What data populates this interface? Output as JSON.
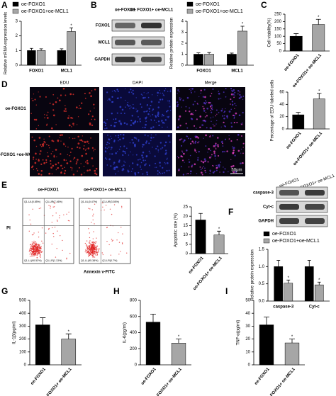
{
  "chart_data": [
    {
      "type": "bar",
      "panel": "A",
      "ylabel": "Relative mRNA expression levels",
      "categories": [
        "FOXO1",
        "MCL1"
      ],
      "series": [
        {
          "name": "oe-FOXO1",
          "color": "#000000",
          "values": [
            1.0,
            1.0
          ],
          "errors": [
            0.15,
            0.12
          ],
          "significance": [
            null,
            null
          ]
        },
        {
          "name": "oe-FOXO1+oe-MCL1",
          "color": "#a6a6a6",
          "values": [
            1.0,
            2.3
          ],
          "errors": [
            0.12,
            0.25
          ],
          "significance": [
            null,
            "*"
          ]
        }
      ],
      "ylim": [
        0,
        3
      ],
      "yticks": [
        0,
        1,
        2,
        3
      ]
    },
    {
      "type": "bar",
      "panel": "B",
      "ylabel": "Relative protein expression",
      "categories": [
        "FOXO1",
        "MCL1"
      ],
      "series": [
        {
          "name": "oe-FOXO1",
          "color": "#000000",
          "values": [
            1.0,
            1.0
          ],
          "errors": [
            0.12,
            0.1
          ],
          "significance": [
            null,
            null
          ]
        },
        {
          "name": "oe-FOXO1+oe-MCL1",
          "color": "#a6a6a6",
          "values": [
            1.0,
            3.1
          ],
          "errors": [
            0.15,
            0.45
          ],
          "significance": [
            null,
            "*"
          ]
        }
      ],
      "ylim": [
        0,
        4
      ],
      "yticks": [
        0,
        1,
        2,
        3,
        4
      ]
    },
    {
      "type": "bar",
      "panel": "C",
      "ylabel": "Cell viability(%)",
      "categories": [
        "oe-FOXO1",
        "oe-FOXO1+ oe-MCL1"
      ],
      "values": [
        100,
        180
      ],
      "errors": [
        18,
        35
      ],
      "colors": [
        "#000000",
        "#a6a6a6"
      ],
      "significance": [
        null,
        "*"
      ],
      "ylim": [
        0,
        250
      ],
      "yticks": [
        0,
        50,
        100,
        150,
        200,
        250
      ]
    },
    {
      "type": "bar",
      "ylabel": "Percentage of EDU-labeled cells",
      "categories": [
        "oe-FOXO1",
        "oe-FOXO1+ oe-MCL1"
      ],
      "values": [
        23,
        49
      ],
      "errors": [
        4,
        9
      ],
      "colors": [
        "#000000",
        "#a6a6a6"
      ],
      "significance": [
        null,
        "*"
      ],
      "ylim": [
        0,
        60
      ],
      "yticks": [
        0,
        20,
        40,
        60
      ]
    },
    {
      "type": "bar",
      "ylabel": "Apoptotic rate (%)",
      "categories": [
        "oe-FOXO1",
        "oe-FOXO1+ oe-MCL1"
      ],
      "values": [
        18,
        10
      ],
      "errors": [
        3.5,
        2
      ],
      "colors": [
        "#000000",
        "#a6a6a6"
      ],
      "significance": [
        null,
        "*"
      ],
      "ylim": [
        0,
        25
      ],
      "yticks": [
        0,
        5,
        10,
        15,
        20,
        25
      ]
    },
    {
      "type": "bar",
      "panel": "F",
      "ylabel": "Relative protein expression",
      "categories": [
        "caspase-3",
        "Cyt-c"
      ],
      "series": [
        {
          "name": "oe-FOXO1",
          "color": "#000000",
          "values": [
            1.0,
            1.0
          ],
          "errors": [
            0.18,
            0.18
          ],
          "significance": [
            null,
            null
          ]
        },
        {
          "name": "oe-FOXO1+oe-MCL1",
          "color": "#a6a6a6",
          "values": [
            0.52,
            0.47
          ],
          "errors": [
            0.09,
            0.08
          ],
          "significance": [
            "*",
            "*"
          ]
        }
      ],
      "ylim": [
        0,
        1.5
      ],
      "yticks": [
        {
          "value": 0,
          "label": "0.0"
        },
        0.5,
        {
          "value": 1,
          "label": "1.0"
        },
        1.5
      ]
    },
    {
      "type": "bar",
      "panel": "G",
      "ylabel": "IL-1β(pg/ml)",
      "categories": [
        "oe-FOXO1",
        "oe-FOXO1+ oe-MCL1"
      ],
      "values": [
        310,
        200
      ],
      "errors": [
        55,
        40
      ],
      "colors": [
        "#000000",
        "#a6a6a6"
      ],
      "significance": [
        null,
        "*"
      ],
      "ylim": [
        0,
        500
      ],
      "yticks": [
        0,
        100,
        200,
        300,
        400,
        500
      ]
    },
    {
      "type": "bar",
      "panel": "H",
      "ylabel": "IL-6(pg/ml)",
      "categories": [
        "oe-FOXO1",
        "oe-FOXO1+ oe-MCL1"
      ],
      "values": [
        530,
        270
      ],
      "errors": [
        100,
        50
      ],
      "colors": [
        "#000000",
        "#a6a6a6"
      ],
      "significance": [
        null,
        "*"
      ],
      "ylim": [
        0,
        800
      ],
      "yticks": [
        0,
        200,
        400,
        600,
        800
      ]
    },
    {
      "type": "bar",
      "panel": "I",
      "ylabel": "TNF-α(pg/ml)",
      "categories": [
        "oe-FOXO1",
        "oe-FOXO1+ oe-MCL1"
      ],
      "values": [
        31,
        17
      ],
      "errors": [
        6,
        3
      ],
      "colors": [
        "#000000",
        "#a6a6a6"
      ],
      "significance": [
        null,
        "*"
      ],
      "ylim": [
        0,
        50
      ],
      "yticks": [
        0,
        10,
        20,
        30,
        40,
        50
      ]
    }
  ],
  "blot_b": {
    "lanes": [
      "oe-FOXO1",
      "oe- FOXO1+ oe-MCL1"
    ],
    "rows": [
      "FOXO1",
      "MCL1",
      "GAPDH"
    ]
  },
  "imaging_d": {
    "panel": "D",
    "columns": [
      "EDU",
      "DAPI",
      "Merge"
    ],
    "rows": [
      "oe-FOXO1",
      "oe-FOXO1 +oe-MCL1"
    ],
    "scale": "50μm"
  },
  "flow_e": {
    "panel": "E",
    "ylabel": "PI",
    "xlabel": "Annexin v-FITC",
    "plots": [
      {
        "title": "oe-FOXO1",
        "quadrants": [
          "Q1-UL(0.85%)",
          "Q1-UR(7.46%)",
          "Q1-LL(90.53%)",
          "Q1-LR(1.13%)"
        ]
      },
      {
        "title": "oe-FOXO1+ oe-MCL1",
        "quadrants": [
          "Q1-UL(0.47%)",
          "Q1-UR(3.55%)",
          "Q1-LL(95.38%)",
          "Q1-LR(0.7%)"
        ]
      }
    ]
  },
  "blot_f": {
    "lanes": [
      "oe-FOXO1",
      "oe-FOXO1+ oe-MCL1"
    ],
    "rows": [
      "caspase-3",
      "Cyt-c",
      "GAPDH"
    ]
  }
}
